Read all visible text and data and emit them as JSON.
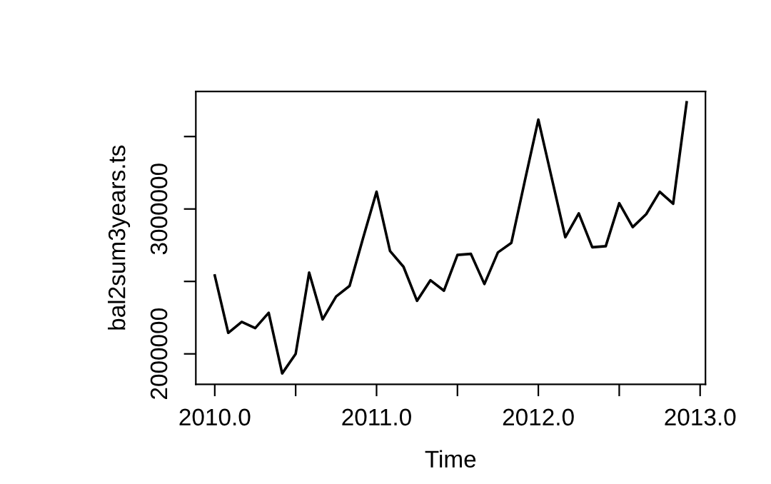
{
  "chart_data": {
    "type": "line",
    "xlabel": "Time",
    "ylabel": "bal2sum3years.ts",
    "x": [
      2010.0,
      2010.0833,
      2010.1667,
      2010.25,
      2010.3333,
      2010.4167,
      2010.5,
      2010.5833,
      2010.6667,
      2010.75,
      2010.8333,
      2010.9167,
      2011.0,
      2011.0833,
      2011.1667,
      2011.25,
      2011.3333,
      2011.4167,
      2011.5,
      2011.5833,
      2011.6667,
      2011.75,
      2011.8333,
      2011.9167,
      2012.0,
      2012.0833,
      2012.1667,
      2012.25,
      2012.3333,
      2012.4167,
      2012.5,
      2012.5833,
      2012.6667,
      2012.75,
      2012.8333,
      2012.9167
    ],
    "series": [
      {
        "color": "#000000",
        "values": [
          2541000,
          2145000,
          2221000,
          2178000,
          2284000,
          1865000,
          2000000,
          2561000,
          2238000,
          2396000,
          2469000,
          2799000,
          3119000,
          2710000,
          2601000,
          2366000,
          2508000,
          2436000,
          2683000,
          2690000,
          2482000,
          2700000,
          2766000,
          3195000,
          3617000,
          3211000,
          2805000,
          2970000,
          2736000,
          2743000,
          3040000,
          2875000,
          2964000,
          3119000,
          3036000,
          3736000
        ]
      }
    ],
    "xlim": [
      2009.883,
      2013.033
    ],
    "ylim": [
      1790000,
      3811000
    ],
    "xticks": [
      {
        "value": 2010.0,
        "label": "2010.0"
      },
      {
        "value": 2010.5,
        "label": null
      },
      {
        "value": 2011.0,
        "label": "2011.0"
      },
      {
        "value": 2011.5,
        "label": null
      },
      {
        "value": 2012.0,
        "label": "2012.0"
      },
      {
        "value": 2012.5,
        "label": null
      },
      {
        "value": 2013.0,
        "label": "2013.0"
      }
    ],
    "yticks": [
      2000000,
      {
        "value": 2500000,
        "label": null
      },
      3000000,
      {
        "value": 3500000,
        "label": null
      }
    ],
    "grid": false,
    "legend": false,
    "marker": "none",
    "line_style": "solid"
  }
}
